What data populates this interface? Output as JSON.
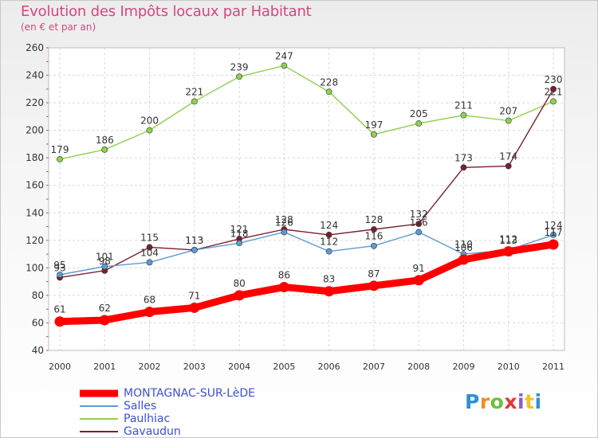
{
  "chart_data": {
    "type": "line",
    "title": "Evolution des Impôts locaux par Habitant",
    "subtitle": "(en € et par an)",
    "xlabel": "",
    "ylabel": "",
    "categories": [
      "2000",
      "2001",
      "2002",
      "2003",
      "2004",
      "2005",
      "2006",
      "2007",
      "2008",
      "2009",
      "2010",
      "2011"
    ],
    "ylim": [
      40,
      260
    ],
    "yticks": [
      40,
      60,
      80,
      100,
      120,
      140,
      160,
      180,
      200,
      220,
      240,
      260
    ],
    "grid": true,
    "legend": "bottom-left",
    "series": [
      {
        "name": "MONTAGNAC-SUR-LèDE",
        "color": "#ff0000",
        "values": [
          61,
          62,
          68,
          71,
          80,
          86,
          83,
          87,
          91,
          106,
          112,
          117
        ]
      },
      {
        "name": "Salles",
        "color": "#5b9bd5",
        "values": [
          95,
          101,
          104,
          113,
          118,
          126,
          112,
          116,
          126,
          110,
          113,
          124
        ]
      },
      {
        "name": "Paulhiac",
        "color": "#8fd14f",
        "values": [
          179,
          186,
          200,
          221,
          239,
          247,
          228,
          197,
          205,
          211,
          207,
          221
        ]
      },
      {
        "name": "Gavaudun",
        "color": "#7b1f2e",
        "values": [
          93,
          98,
          115,
          113,
          121,
          128,
          124,
          128,
          132,
          173,
          174,
          230
        ]
      }
    ]
  },
  "brand": {
    "letters": [
      "P",
      "r",
      "o",
      "x",
      "i",
      "t",
      "i"
    ],
    "colors": [
      "#2f8fd8",
      "#f28c28",
      "#6cbf3b",
      "#e03a3a",
      "#8a5fc9",
      "#f2c12e",
      "#2f8fd8"
    ]
  }
}
